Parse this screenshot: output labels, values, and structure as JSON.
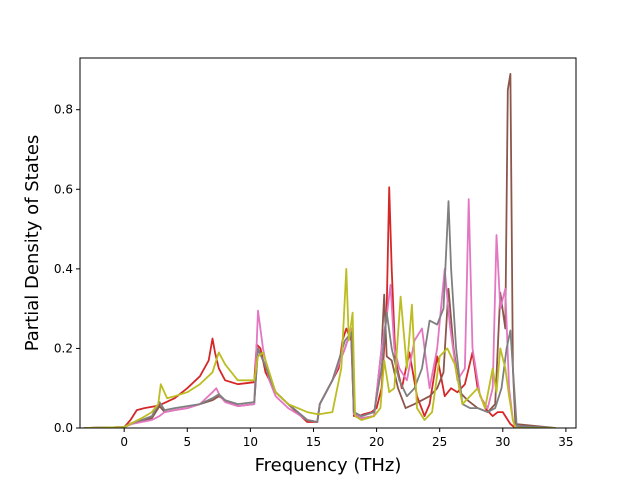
{
  "chart_data": {
    "type": "line",
    "title": "",
    "xlabel": "Frequency (THz)",
    "ylabel": "Partial Density of States",
    "xlim": [
      -3.5,
      35.8
    ],
    "ylim": [
      0,
      0.93
    ],
    "xticks": [
      0,
      5,
      10,
      15,
      20,
      25,
      30,
      35
    ],
    "yticks": [
      0.0,
      0.2,
      0.4,
      0.6,
      0.8
    ],
    "xtick_labels": [
      "0",
      "5",
      "10",
      "15",
      "20",
      "25",
      "30",
      "35"
    ],
    "ytick_labels": [
      "0.0",
      "0.2",
      "0.4",
      "0.6",
      "0.8"
    ],
    "grid": false,
    "legend": "none",
    "series": [
      {
        "color": "#d62728",
        "x": [
          -3.2,
          0,
          0.5,
          1.0,
          1.6,
          2.5,
          3.0,
          4,
          5,
          6,
          6.7,
          7.0,
          7.2,
          7.5,
          8,
          9,
          10.3,
          10.5,
          10.8,
          11.2,
          12,
          13,
          14,
          14.5,
          15.3,
          15.5,
          16,
          17,
          17.3,
          17.6,
          18.0,
          18.2,
          18.6,
          19,
          19.6,
          20.0,
          20.4,
          20.8,
          21.0,
          21.2,
          21.5,
          22,
          22.6,
          23.2,
          23.8,
          24.2,
          24.8,
          25.4,
          25.9,
          26.4,
          27,
          27.6,
          28,
          28.6,
          29.2,
          29.6,
          30.0,
          30.4,
          30.6,
          30.8,
          31,
          34.2
        ],
        "y": [
          0,
          0.002,
          0.02,
          0.045,
          0.05,
          0.055,
          0.06,
          0.075,
          0.1,
          0.13,
          0.17,
          0.225,
          0.19,
          0.15,
          0.12,
          0.11,
          0.115,
          0.21,
          0.2,
          0.14,
          0.09,
          0.06,
          0.03,
          0.015,
          0.015,
          0.06,
          0.09,
          0.15,
          0.22,
          0.25,
          0.22,
          0.03,
          0.03,
          0.035,
          0.04,
          0.05,
          0.1,
          0.3,
          0.605,
          0.4,
          0.17,
          0.1,
          0.19,
          0.08,
          0.03,
          0.06,
          0.18,
          0.08,
          0.1,
          0.09,
          0.11,
          0.19,
          0.1,
          0.05,
          0.03,
          0.04,
          0.04,
          0.02,
          0.01,
          0.005,
          0,
          0
        ]
      },
      {
        "color": "#8c564b",
        "x": [
          -3.2,
          0,
          0.6,
          1.4,
          2.2,
          2.8,
          3.2,
          4,
          5,
          6,
          7.0,
          7.5,
          8.0,
          9,
          10.3,
          10.6,
          11.0,
          12,
          13,
          14.5,
          15.3,
          15.5,
          16.5,
          17.5,
          18.0,
          18.2,
          18.8,
          19.8,
          20.4,
          20.6,
          20.8,
          21.2,
          21.7,
          22.3,
          23.0,
          23.6,
          24.2,
          24.8,
          25.3,
          25.7,
          26.1,
          26.6,
          27.2,
          28.0,
          28.8,
          29.4,
          29.8,
          30.2,
          30.4,
          30.6,
          30.8,
          31.0,
          34.2
        ],
        "y": [
          0,
          0.002,
          0.012,
          0.018,
          0.025,
          0.055,
          0.04,
          0.045,
          0.05,
          0.06,
          0.07,
          0.08,
          0.07,
          0.055,
          0.06,
          0.2,
          0.17,
          0.09,
          0.06,
          0.02,
          0.015,
          0.06,
          0.12,
          0.2,
          0.25,
          0.035,
          0.025,
          0.03,
          0.2,
          0.335,
          0.18,
          0.17,
          0.1,
          0.05,
          0.06,
          0.07,
          0.08,
          0.1,
          0.14,
          0.35,
          0.2,
          0.09,
          0.07,
          0.05,
          0.04,
          0.06,
          0.34,
          0.25,
          0.85,
          0.89,
          0.15,
          0.01,
          0
        ]
      },
      {
        "color": "#e377c2",
        "x": [
          -3.2,
          0,
          0.6,
          1.4,
          2.2,
          2.8,
          3.2,
          4,
          5,
          6,
          7.0,
          7.3,
          7.6,
          8.0,
          9,
          10.3,
          10.6,
          11.0,
          11.5,
          12,
          13,
          14.5,
          15.3,
          15.5,
          16.5,
          17.5,
          18.0,
          18.2,
          18.8,
          19.8,
          20.4,
          20.8,
          21.1,
          21.4,
          21.8,
          22.4,
          23.0,
          23.6,
          24.2,
          24.8,
          25.4,
          25.8,
          26.4,
          27.0,
          27.3,
          27.6,
          28.2,
          28.8,
          29.2,
          29.5,
          29.8,
          30.2,
          30.5,
          30.8,
          31.0,
          34.2
        ],
        "y": [
          0,
          0.002,
          0.01,
          0.015,
          0.02,
          0.03,
          0.04,
          0.045,
          0.05,
          0.06,
          0.09,
          0.1,
          0.08,
          0.065,
          0.055,
          0.06,
          0.295,
          0.2,
          0.12,
          0.08,
          0.05,
          0.02,
          0.015,
          0.06,
          0.12,
          0.2,
          0.25,
          0.035,
          0.025,
          0.03,
          0.2,
          0.28,
          0.36,
          0.2,
          0.15,
          0.12,
          0.22,
          0.25,
          0.1,
          0.2,
          0.4,
          0.26,
          0.12,
          0.15,
          0.575,
          0.2,
          0.08,
          0.05,
          0.1,
          0.485,
          0.3,
          0.35,
          0.1,
          0.02,
          0,
          0
        ]
      },
      {
        "color": "#7f7f7f",
        "x": [
          -3.2,
          0,
          0.6,
          1.4,
          2.2,
          2.8,
          3.2,
          4,
          5,
          6,
          7.0,
          7.5,
          8.0,
          9,
          10.3,
          10.6,
          11.0,
          12,
          13,
          14.5,
          15.3,
          15.5,
          16.5,
          17.5,
          18.0,
          18.2,
          18.8,
          19.8,
          20.4,
          20.8,
          21.2,
          21.8,
          22.4,
          23.0,
          23.6,
          24.2,
          24.8,
          25.3,
          25.7,
          25.9,
          26.3,
          26.8,
          27.4,
          28.0,
          28.8,
          29.4,
          29.9,
          30.3,
          30.6,
          30.9,
          31.1,
          34.2
        ],
        "y": [
          0,
          0.002,
          0.012,
          0.02,
          0.03,
          0.065,
          0.045,
          0.05,
          0.055,
          0.06,
          0.075,
          0.085,
          0.07,
          0.06,
          0.065,
          0.2,
          0.17,
          0.09,
          0.06,
          0.02,
          0.015,
          0.06,
          0.12,
          0.22,
          0.24,
          0.04,
          0.03,
          0.04,
          0.15,
          0.29,
          0.2,
          0.12,
          0.08,
          0.1,
          0.15,
          0.27,
          0.26,
          0.3,
          0.57,
          0.4,
          0.2,
          0.06,
          0.05,
          0.05,
          0.04,
          0.05,
          0.1,
          0.2,
          0.245,
          0.1,
          0.005,
          0
        ]
      },
      {
        "color": "#bcbd22",
        "x": [
          -3.2,
          0,
          0.6,
          1.4,
          2.2,
          2.7,
          2.9,
          3.4,
          4,
          5,
          6,
          7.0,
          7.5,
          8.0,
          9,
          10.3,
          10.6,
          11.0,
          12,
          13,
          14.5,
          15.3,
          15.5,
          16.5,
          17.2,
          17.6,
          17.8,
          18.1,
          18.3,
          18.8,
          19.8,
          20.3,
          20.6,
          21.0,
          21.4,
          21.9,
          22.4,
          22.8,
          23.2,
          23.8,
          24.4,
          25.0,
          25.6,
          26.2,
          26.8,
          27.4,
          28.0,
          28.6,
          29.2,
          29.5,
          29.8,
          30.2,
          30.5,
          30.8,
          31.0,
          34.2
        ],
        "y": [
          0,
          0.002,
          0.012,
          0.025,
          0.04,
          0.06,
          0.11,
          0.075,
          0.08,
          0.09,
          0.11,
          0.14,
          0.19,
          0.16,
          0.12,
          0.12,
          0.18,
          0.19,
          0.09,
          0.06,
          0.04,
          0.035,
          0.035,
          0.04,
          0.15,
          0.4,
          0.22,
          0.29,
          0.03,
          0.02,
          0.03,
          0.05,
          0.17,
          0.09,
          0.1,
          0.33,
          0.15,
          0.31,
          0.05,
          0.02,
          0.04,
          0.18,
          0.2,
          0.16,
          0.06,
          0.08,
          0.1,
          0.05,
          0.15,
          0.09,
          0.2,
          0.15,
          0.08,
          0.02,
          0,
          0
        ]
      }
    ]
  }
}
